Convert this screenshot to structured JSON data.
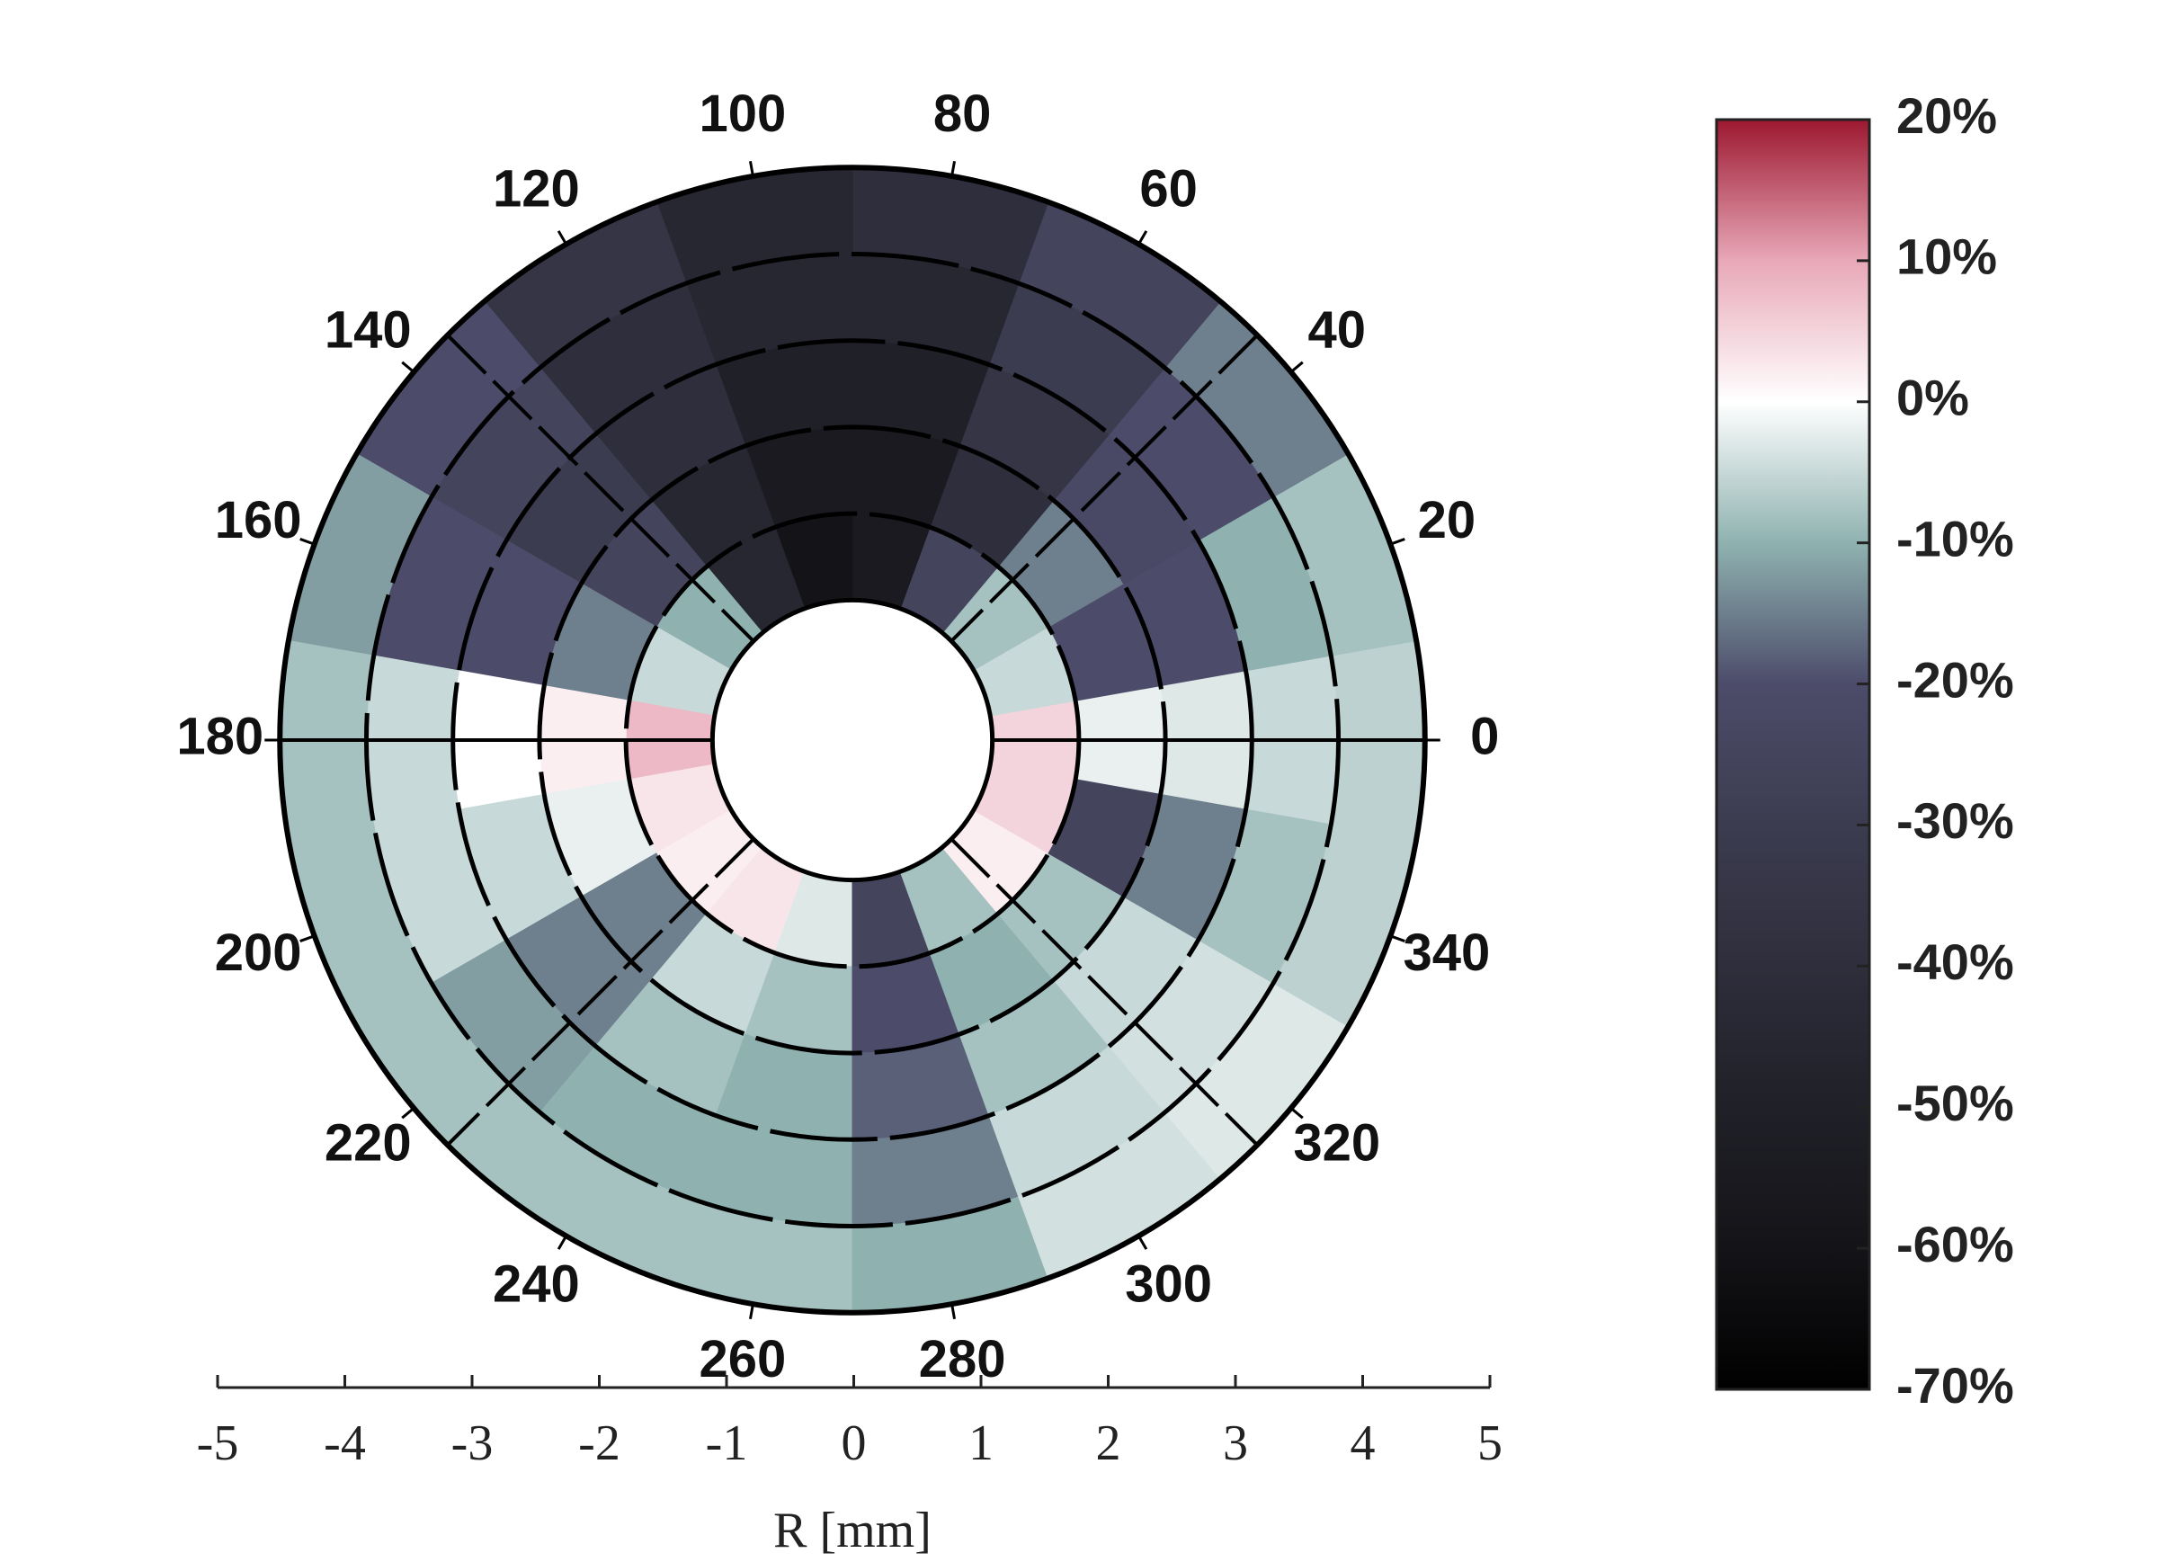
{
  "chart_data": {
    "type": "polar-heatmap",
    "thetaticks": [
      0,
      20,
      40,
      60,
      80,
      100,
      120,
      140,
      160,
      180,
      200,
      220,
      240,
      260,
      280,
      300,
      320,
      340
    ],
    "r_edges": [
      1.1,
      1.78,
      2.46,
      3.14,
      3.82,
      4.5
    ],
    "values": [
      [
        5,
        -2,
        -3,
        -5,
        -6
      ],
      [
        -5,
        -20,
        -20,
        -10,
        -8
      ],
      [
        -8,
        -15,
        -22,
        -20,
        -15
      ],
      [
        -25,
        -40,
        -35,
        -30,
        -25
      ],
      [
        -55,
        -55,
        -50,
        -45,
        -40
      ],
      [
        -60,
        -55,
        -50,
        -45,
        -45
      ],
      [
        -45,
        -45,
        -40,
        -40,
        -35
      ],
      [
        -10,
        -25,
        -30,
        -25,
        -20
      ],
      [
        -5,
        -15,
        -20,
        -20,
        -12
      ],
      [
        8,
        2,
        0,
        -5,
        -8
      ],
      [
        3,
        -2,
        -5,
        -5,
        -8
      ],
      [
        2,
        -15,
        -15,
        -12,
        -8
      ],
      [
        3,
        -5,
        -8,
        -10,
        -8
      ],
      [
        -3,
        -8,
        -10,
        -10,
        -8
      ],
      [
        -25,
        -20,
        -18,
        -15,
        -10
      ],
      [
        -8,
        -10,
        -8,
        -5,
        -4
      ],
      [
        2,
        -8,
        -5,
        -4,
        -3
      ],
      [
        5,
        -25,
        -15,
        -8,
        -6
      ]
    ],
    "xlabel": "R [mm]",
    "xlim": [
      -5,
      5
    ],
    "xticks": [
      -5,
      -4,
      -3,
      -2,
      -1,
      0,
      1,
      2,
      3,
      4,
      5
    ],
    "clim": [
      -70,
      20
    ],
    "cticks": [
      {
        "value": -70,
        "label": "-70%"
      },
      {
        "value": -60,
        "label": "-60%"
      },
      {
        "value": -50,
        "label": "-50%"
      },
      {
        "value": -40,
        "label": "-40%"
      },
      {
        "value": -30,
        "label": "-30%"
      },
      {
        "value": -20,
        "label": "-20%"
      },
      {
        "value": -10,
        "label": "-10%"
      },
      {
        "value": 0,
        "label": "0%"
      },
      {
        "value": 10,
        "label": "10%"
      },
      {
        "value": 20,
        "label": "20%"
      }
    ],
    "colormap": [
      "#000000",
      "#141418",
      "#202028",
      "#2e2e3c",
      "#3c3c50",
      "#4c4c6a",
      "#8fb2b0",
      "#ffffff",
      "#e8a8b8",
      "#9c1830"
    ]
  }
}
